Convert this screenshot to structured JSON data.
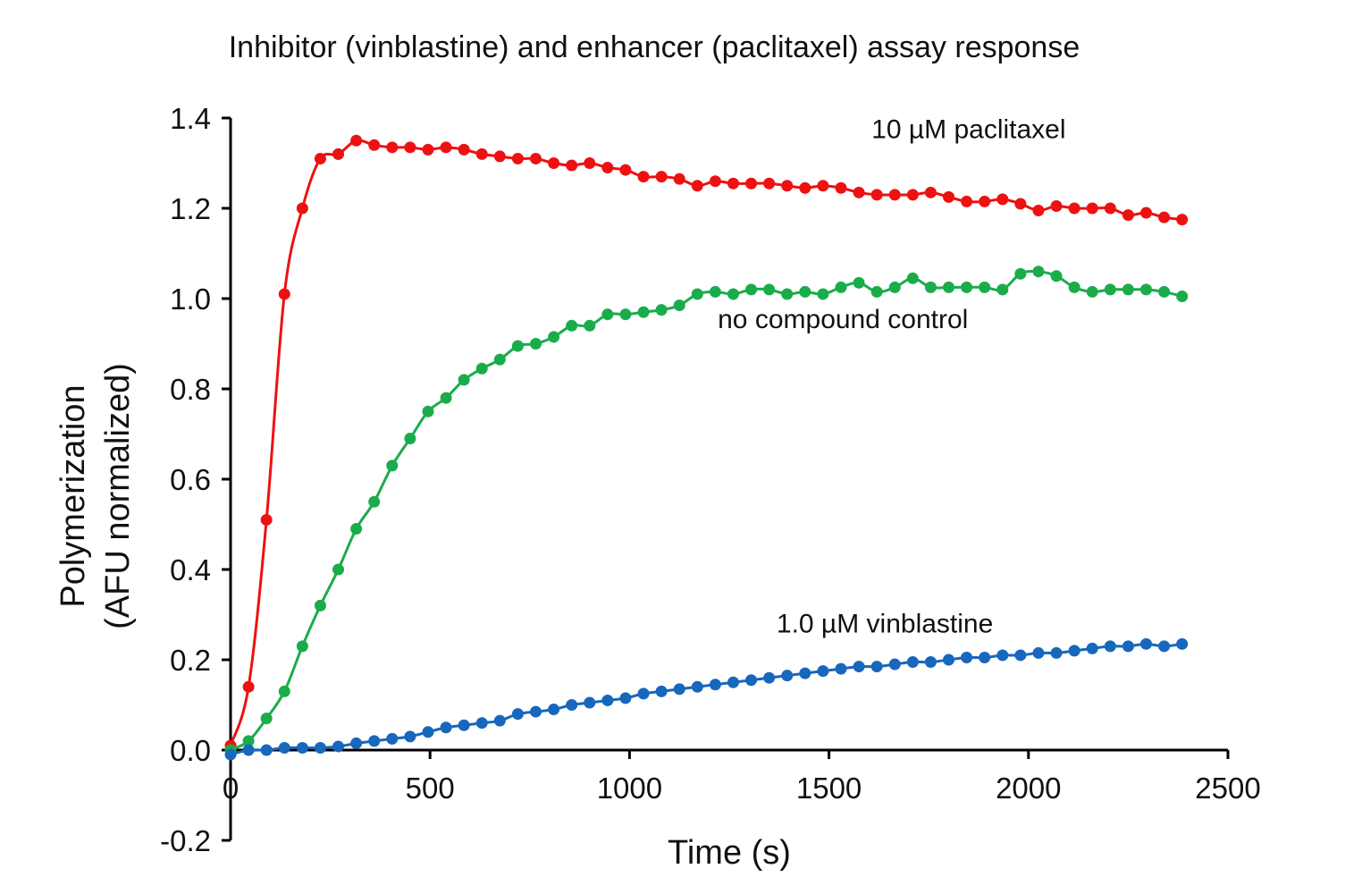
{
  "chart_data": {
    "type": "line",
    "title": "Inhibitor (vinblastine) and enhancer (paclitaxel) assay response",
    "xlabel": "Time (s)",
    "ylabel_line1": "Polymerization",
    "ylabel_line2": "(AFU normalized)",
    "xlim": [
      0,
      2500
    ],
    "ylim": [
      -0.2,
      1.4
    ],
    "x_ticks": [
      0,
      500,
      1000,
      1500,
      2000,
      2500
    ],
    "x_tick_labels": [
      "0",
      "500",
      "1000",
      "1500",
      "2000",
      "2500"
    ],
    "y_ticks": [
      -0.2,
      0.0,
      0.2,
      0.4,
      0.6,
      0.8,
      1.0,
      1.2,
      1.4
    ],
    "y_tick_labels": [
      "-0.2",
      "0.0",
      "0.2",
      "0.4",
      "0.6",
      "0.8",
      "1.0",
      "1.2",
      "1.4"
    ],
    "grid": false,
    "series": [
      {
        "name": "10 µM paclitaxel",
        "color": "#ee1111",
        "label_at": [
          1850,
          1.355
        ],
        "x": [
          0,
          45,
          90,
          135,
          180,
          225,
          270,
          315,
          360,
          405,
          450,
          495,
          540,
          585,
          630,
          675,
          720,
          765,
          810,
          855,
          900,
          945,
          990,
          1035,
          1080,
          1125,
          1170,
          1215,
          1260,
          1305,
          1350,
          1395,
          1440,
          1485,
          1530,
          1575,
          1620,
          1665,
          1710,
          1755,
          1800,
          1845,
          1890,
          1935,
          1980,
          2025,
          2070,
          2115,
          2160,
          2205,
          2250,
          2295,
          2340,
          2385
        ],
        "y": [
          0.01,
          0.14,
          0.51,
          1.01,
          1.2,
          1.31,
          1.32,
          1.35,
          1.34,
          1.335,
          1.335,
          1.33,
          1.335,
          1.33,
          1.32,
          1.315,
          1.31,
          1.31,
          1.3,
          1.295,
          1.3,
          1.29,
          1.285,
          1.27,
          1.27,
          1.265,
          1.25,
          1.26,
          1.255,
          1.255,
          1.255,
          1.25,
          1.245,
          1.25,
          1.245,
          1.235,
          1.23,
          1.23,
          1.23,
          1.235,
          1.225,
          1.215,
          1.215,
          1.22,
          1.21,
          1.195,
          1.205,
          1.2,
          1.2,
          1.2,
          1.185,
          1.19,
          1.18,
          1.175
        ]
      },
      {
        "name": "no compound control",
        "color": "#1aac4b",
        "label_at": [
          1535,
          0.935
        ],
        "x": [
          0,
          45,
          90,
          135,
          180,
          225,
          270,
          315,
          360,
          405,
          450,
          495,
          540,
          585,
          630,
          675,
          720,
          765,
          810,
          855,
          900,
          945,
          990,
          1035,
          1080,
          1125,
          1170,
          1215,
          1260,
          1305,
          1350,
          1395,
          1440,
          1485,
          1530,
          1575,
          1620,
          1665,
          1710,
          1755,
          1800,
          1845,
          1890,
          1935,
          1980,
          2025,
          2070,
          2115,
          2160,
          2205,
          2250,
          2295,
          2340,
          2385
        ],
        "y": [
          0.0,
          0.02,
          0.07,
          0.13,
          0.23,
          0.32,
          0.4,
          0.49,
          0.55,
          0.63,
          0.69,
          0.75,
          0.78,
          0.82,
          0.845,
          0.865,
          0.895,
          0.9,
          0.915,
          0.94,
          0.94,
          0.965,
          0.965,
          0.97,
          0.975,
          0.985,
          1.01,
          1.015,
          1.01,
          1.02,
          1.02,
          1.01,
          1.015,
          1.01,
          1.025,
          1.035,
          1.015,
          1.025,
          1.045,
          1.025,
          1.025,
          1.025,
          1.025,
          1.02,
          1.055,
          1.06,
          1.05,
          1.025,
          1.015,
          1.02,
          1.02,
          1.02,
          1.015,
          1.005
        ]
      },
      {
        "name": "1.0 µM vinblastine",
        "color": "#1767bd",
        "label_at": [
          1640,
          0.26
        ],
        "x": [
          0,
          45,
          90,
          135,
          180,
          225,
          270,
          315,
          360,
          405,
          450,
          495,
          540,
          585,
          630,
          675,
          720,
          765,
          810,
          855,
          900,
          945,
          990,
          1035,
          1080,
          1125,
          1170,
          1215,
          1260,
          1305,
          1350,
          1395,
          1440,
          1485,
          1530,
          1575,
          1620,
          1665,
          1710,
          1755,
          1800,
          1845,
          1890,
          1935,
          1980,
          2025,
          2070,
          2115,
          2160,
          2205,
          2250,
          2295,
          2340,
          2385
        ],
        "y": [
          -0.01,
          0.0,
          0.0,
          0.005,
          0.005,
          0.005,
          0.008,
          0.015,
          0.02,
          0.025,
          0.03,
          0.04,
          0.05,
          0.055,
          0.06,
          0.065,
          0.08,
          0.085,
          0.09,
          0.1,
          0.105,
          0.11,
          0.115,
          0.125,
          0.13,
          0.135,
          0.14,
          0.145,
          0.15,
          0.155,
          0.16,
          0.165,
          0.17,
          0.175,
          0.18,
          0.185,
          0.185,
          0.19,
          0.195,
          0.195,
          0.2,
          0.205,
          0.205,
          0.21,
          0.21,
          0.215,
          0.215,
          0.22,
          0.225,
          0.23,
          0.23,
          0.235,
          0.23,
          0.235
        ]
      }
    ]
  }
}
